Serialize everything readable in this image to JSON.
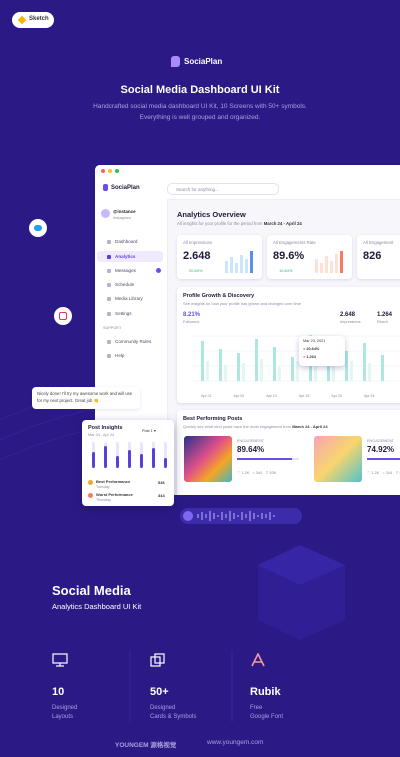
{
  "badge": "Sketch",
  "brand": "SociaPlan",
  "header": {
    "title": "Social Media Dashboard UI Kit",
    "subtitle_lines": [
      "Handcrafted social media dashboard UI Kit, 10 Screens with 50+ symbols.",
      "Everything is well grouped and organized."
    ]
  },
  "dashboard": {
    "brand": "SociaPlan",
    "search": "Search for anything...",
    "user": {
      "name": "@instance",
      "role": "Instagram"
    },
    "nav": [
      "Dashboard",
      "Analytics",
      "Messages",
      "Schedule",
      "Media Library",
      "Settings"
    ],
    "support_label": "SUPPORT",
    "support": [
      "Community Rules",
      "Help"
    ],
    "title": "Analytics Overview",
    "subtitle": "All insights for your profile for the period from",
    "period": "March 24 - April 24",
    "stats": [
      {
        "label": "All Impressions",
        "value": "2.648",
        "change": "20.64%"
      },
      {
        "label": "All Engagements Rate",
        "value": "89.6%",
        "change": "10.64%"
      },
      {
        "label": "All Engagement",
        "value": "826"
      }
    ],
    "growth": {
      "title": "Profile Growth & Discovery",
      "subtitle": "See insights on how your profile has grown and changed over time",
      "metrics": [
        {
          "value": "8.21%",
          "label": "Followers"
        },
        {
          "value": "2.648",
          "label": "Impressions"
        },
        {
          "value": "1.264",
          "label": "Reach"
        }
      ],
      "tooltip": {
        "date": "Mar 23, 2021",
        "rows": [
          "20.64%",
          "1.264"
        ]
      },
      "xlabels": [
        "Apr 01",
        "Apr 05",
        "Apr 10",
        "Apr 15",
        "Apr 20",
        "Apr 24"
      ]
    },
    "posts": {
      "title": "Best Performing Posts",
      "subtitle": "Quickly see what kind posts have the most engagement from",
      "period": "March 24 - April 24",
      "items": [
        {
          "label": "ENGAGEMENT",
          "value": "89.64%",
          "likes": "1.2K",
          "comments": "344",
          "shares": "536"
        },
        {
          "label": "ENGAGEMENT",
          "value": "74.92%",
          "likes": "1.2K",
          "comments": "344",
          "shares": "536"
        }
      ]
    }
  },
  "comment": "Nicely done! I'll try my awesome work and will use for my next project. Great job 👏",
  "post_insights": {
    "title": "Post Insights",
    "period": "Mar 24 - Apr 24",
    "filter": "Post 1",
    "best": {
      "label": "Best Performance",
      "day": "Tuesday",
      "value": "536"
    },
    "worst": {
      "label": "Worst Performance",
      "day": "Thursday",
      "value": "344"
    }
  },
  "footer_section": {
    "title": "Social Media",
    "subtitle": "Analytics Dashboard UI Kit",
    "features": [
      {
        "value": "10",
        "lines": [
          "Designed",
          "Layouts"
        ]
      },
      {
        "value": "50+",
        "lines": [
          "Designed",
          "Cards & Symbols"
        ]
      },
      {
        "value": "Rubik",
        "lines": [
          "Free",
          "Google Font"
        ]
      }
    ]
  },
  "credits": {
    "brand": "YOUNGEM 源格视觉",
    "url": "www.youngem.com"
  }
}
